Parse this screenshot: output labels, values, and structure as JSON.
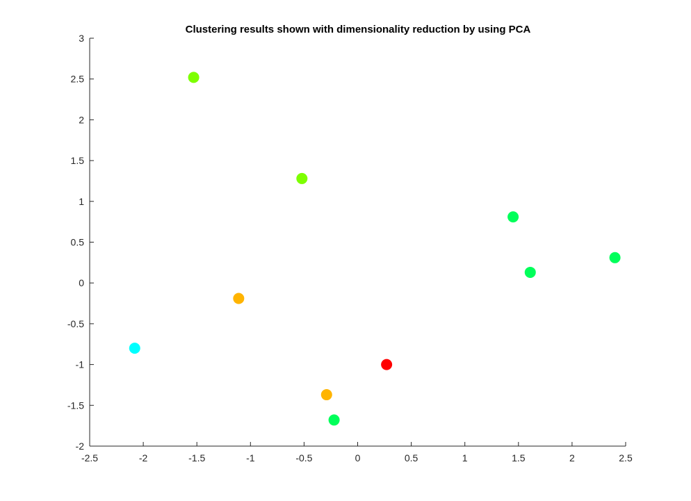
{
  "chart_data": {
    "type": "scatter",
    "title": "Clustering results shown with dimensionality reduction by using PCA",
    "xlabel": "",
    "ylabel": "",
    "xlim": [
      -2.5,
      2.5
    ],
    "ylim": [
      -2,
      3
    ],
    "grid": false,
    "xticks": [
      -2.5,
      -2,
      -1.5,
      -1,
      -0.5,
      0,
      0.5,
      1,
      1.5,
      2,
      2.5
    ],
    "xtick_labels": [
      "-2.5",
      "-2",
      "-1.5",
      "-1",
      "-0.5",
      "0",
      "0.5",
      "1",
      "1.5",
      "2",
      "2.5"
    ],
    "yticks": [
      -2,
      -1.5,
      -1,
      -0.5,
      0,
      0.5,
      1,
      1.5,
      2,
      2.5,
      3
    ],
    "ytick_labels": [
      "-2",
      "-1.5",
      "-1",
      "-0.5",
      "0",
      "0.5",
      "1",
      "1.5",
      "2",
      "2.5",
      "3"
    ],
    "points": [
      {
        "x": -1.53,
        "y": 2.52,
        "color": "#7dff00"
      },
      {
        "x": -0.52,
        "y": 1.28,
        "color": "#7dff00"
      },
      {
        "x": 1.45,
        "y": 0.81,
        "color": "#00ff5a"
      },
      {
        "x": 2.4,
        "y": 0.31,
        "color": "#00ff5a"
      },
      {
        "x": 1.61,
        "y": 0.13,
        "color": "#00ff5a"
      },
      {
        "x": -1.11,
        "y": -0.19,
        "color": "#ffb400"
      },
      {
        "x": -2.08,
        "y": -0.8,
        "color": "#00ffff"
      },
      {
        "x": 0.27,
        "y": -1.0,
        "color": "#ff0000"
      },
      {
        "x": -0.29,
        "y": -1.37,
        "color": "#ffb400"
      },
      {
        "x": -0.22,
        "y": -1.68,
        "color": "#00ff5a"
      }
    ]
  }
}
